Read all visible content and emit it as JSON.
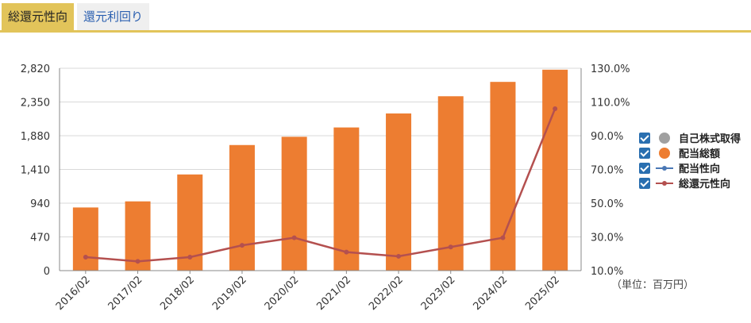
{
  "tabs": [
    {
      "label": "総還元性向",
      "active": true
    },
    {
      "label": "還元利回り",
      "active": false
    }
  ],
  "unit_label": "（単位：百万円）",
  "colors": {
    "accent": "#e2c45a",
    "bar": "#ed7d31",
    "buyback": "#a0a0a0",
    "payout_line": "#4a78b5",
    "total_return_line": "#b4504f",
    "checkbox": "#2a6fb0"
  },
  "legend": [
    {
      "label": "自己株式取得",
      "symbol": "dot",
      "color": "#a0a0a0"
    },
    {
      "label": "配当総額",
      "symbol": "dot",
      "color": "#ed7d31"
    },
    {
      "label": "配当性向",
      "symbol": "line",
      "color": "#4a78b5"
    },
    {
      "label": "総還元性向",
      "symbol": "line",
      "color": "#b4504f"
    }
  ],
  "chart_data": {
    "type": "bar",
    "categories": [
      "2016/02",
      "2017/02",
      "2018/02",
      "2019/02",
      "2020/02",
      "2021/02",
      "2022/02",
      "2023/02",
      "2024/02",
      "2025/02"
    ],
    "series": [
      {
        "name": "配当総額",
        "type": "bar",
        "axis": "left",
        "values": [
          880,
          965,
          1340,
          1750,
          1865,
          1995,
          2190,
          2430,
          2630,
          2800
        ]
      },
      {
        "name": "総還元性向",
        "type": "line",
        "axis": "right",
        "values": [
          18.0,
          15.5,
          18.0,
          25.0,
          29.5,
          21.0,
          18.5,
          24.0,
          29.5,
          106.0
        ]
      }
    ],
    "left_axis": {
      "ticks": [
        "0",
        "470",
        "940",
        "1,410",
        "1,880",
        "2,350",
        "2,820"
      ],
      "ylim": [
        0,
        2820
      ]
    },
    "right_axis": {
      "ticks": [
        "10.0%",
        "30.0%",
        "50.0%",
        "70.0%",
        "90.0%",
        "110.0%",
        "130.0%"
      ],
      "ylim": [
        10,
        130
      ]
    },
    "grid": "horizontal",
    "legend_position": "right"
  }
}
